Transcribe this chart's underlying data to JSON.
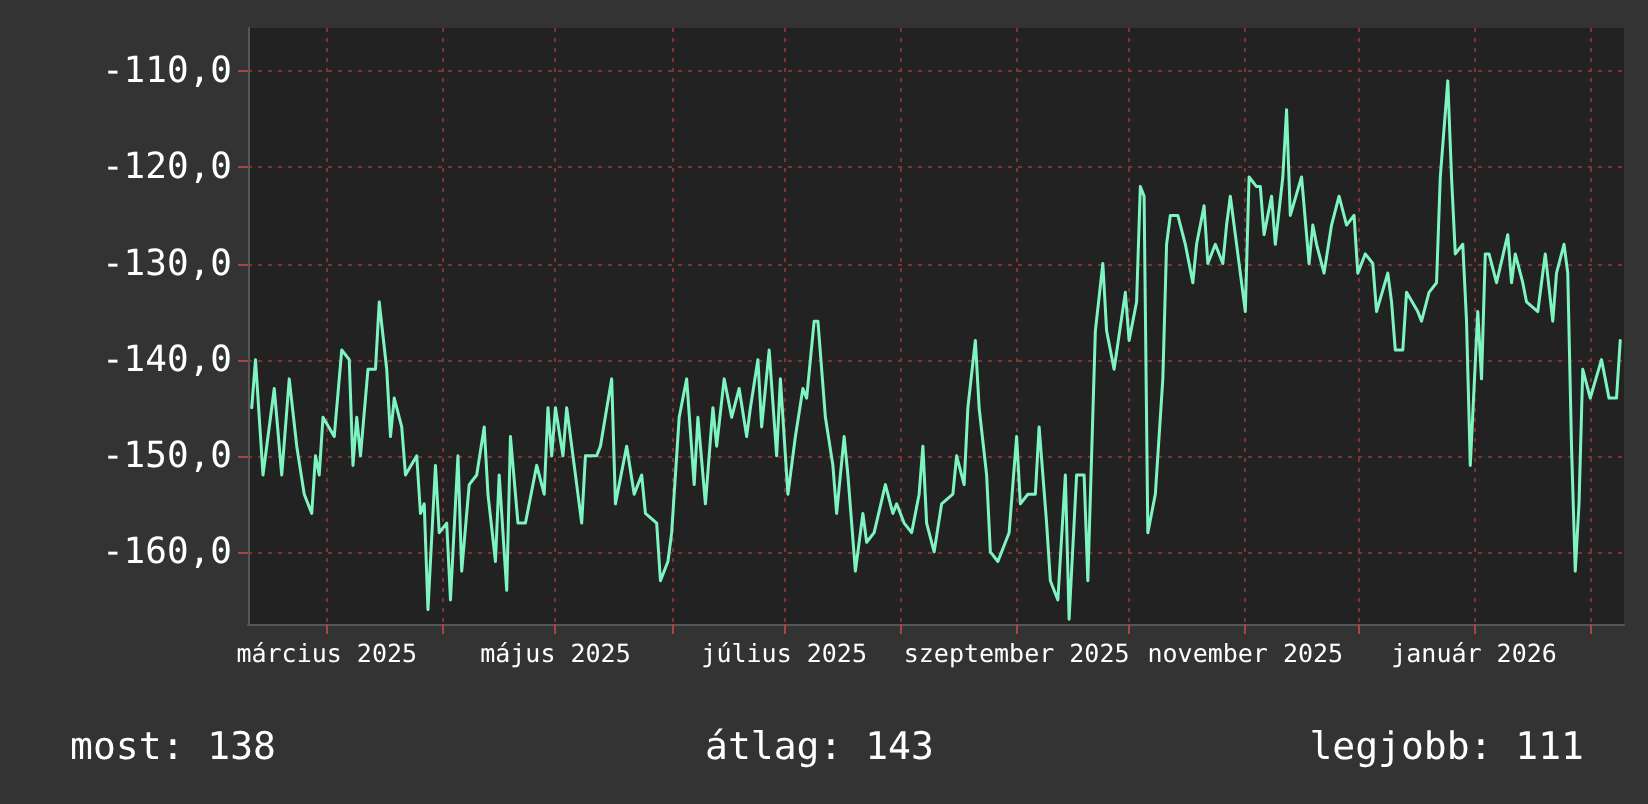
{
  "chart_data": {
    "type": "line",
    "marker": "none",
    "line_style": "solid",
    "grid": true,
    "xlim": [
      "2025-02-08",
      "2026-02-10"
    ],
    "xticks": [
      {
        "value": "2025-03-01",
        "label": "március 2025"
      },
      {
        "value": "2025-04-01",
        "label": null
      },
      {
        "value": "2025-05-01",
        "label": "május 2025"
      },
      {
        "value": "2025-06-01",
        "label": null
      },
      {
        "value": "2025-07-01",
        "label": "július 2025"
      },
      {
        "value": "2025-08-01",
        "label": null
      },
      {
        "value": "2025-09-01",
        "label": "szeptember 2025"
      },
      {
        "value": "2025-10-01",
        "label": null
      },
      {
        "value": "2025-11-01",
        "label": "november 2025"
      },
      {
        "value": "2025-12-01",
        "label": null
      },
      {
        "value": "2026-01-01",
        "label": "január 2026"
      },
      {
        "value": "2026-02-01",
        "label": null
      }
    ],
    "ylim": [
      -167.5,
      -105.5
    ],
    "yticks": [
      {
        "value": -160,
        "label": "-160,0"
      },
      {
        "value": -150,
        "label": "-150,0"
      },
      {
        "value": -140,
        "label": "-140,0"
      },
      {
        "value": -130,
        "label": "-130,0"
      },
      {
        "value": -120,
        "label": "-120,0"
      },
      {
        "value": -110,
        "label": "-110,0"
      }
    ],
    "annotations": [
      "most: 138",
      "átlag: 143",
      "legjobb: 111"
    ],
    "series": [
      {
        "color": "#7ef5c0",
        "x": [
          "2025-02-09",
          "2025-02-10",
          "2025-02-12",
          "2025-02-15",
          "2025-02-17",
          "2025-02-19",
          "2025-02-21",
          "2025-02-23",
          "2025-02-25",
          "2025-02-26",
          "2025-02-27",
          "2025-02-28",
          "2025-03-03",
          "2025-03-05",
          "2025-03-07",
          "2025-03-08",
          "2025-03-09",
          "2025-03-10",
          "2025-03-12",
          "2025-03-14",
          "2025-03-15",
          "2025-03-17",
          "2025-03-18",
          "2025-03-19",
          "2025-03-21",
          "2025-03-22",
          "2025-03-25",
          "2025-03-26",
          "2025-03-27",
          "2025-03-28",
          "2025-03-30",
          "2025-03-31",
          "2025-04-02",
          "2025-04-03",
          "2025-04-05",
          "2025-04-06",
          "2025-04-08",
          "2025-04-10",
          "2025-04-12",
          "2025-04-13",
          "2025-04-15",
          "2025-04-16",
          "2025-04-18",
          "2025-04-19",
          "2025-04-21",
          "2025-04-23",
          "2025-04-26",
          "2025-04-28",
          "2025-04-29",
          "2025-04-30",
          "2025-05-01",
          "2025-05-03",
          "2025-05-04",
          "2025-05-06",
          "2025-05-08",
          "2025-05-09",
          "2025-05-12",
          "2025-05-13",
          "2025-05-16",
          "2025-05-17",
          "2025-05-20",
          "2025-05-22",
          "2025-05-24",
          "2025-05-25",
          "2025-05-28",
          "2025-05-29",
          "2025-05-31",
          "2025-06-01",
          "2025-06-03",
          "2025-06-05",
          "2025-06-07",
          "2025-06-08",
          "2025-06-10",
          "2025-06-12",
          "2025-06-13",
          "2025-06-15",
          "2025-06-17",
          "2025-06-19",
          "2025-06-21",
          "2025-06-22",
          "2025-06-24",
          "2025-06-25",
          "2025-06-27",
          "2025-06-29",
          "2025-06-30",
          "2025-07-02",
          "2025-07-04",
          "2025-07-06",
          "2025-07-07",
          "2025-07-09",
          "2025-07-10",
          "2025-07-12",
          "2025-07-14",
          "2025-07-15",
          "2025-07-17",
          "2025-07-18",
          "2025-07-20",
          "2025-07-22",
          "2025-07-23",
          "2025-07-25",
          "2025-07-28",
          "2025-07-30",
          "2025-07-31",
          "2025-08-02",
          "2025-08-04",
          "2025-08-06",
          "2025-08-07",
          "2025-08-08",
          "2025-08-10",
          "2025-08-12",
          "2025-08-15",
          "2025-08-16",
          "2025-08-18",
          "2025-08-19",
          "2025-08-21",
          "2025-08-22",
          "2025-08-24",
          "2025-08-25",
          "2025-08-27",
          "2025-08-30",
          "2025-09-01",
          "2025-09-02",
          "2025-09-04",
          "2025-09-06",
          "2025-09-07",
          "2025-09-09",
          "2025-09-10",
          "2025-09-12",
          "2025-09-14",
          "2025-09-15",
          "2025-09-17",
          "2025-09-19",
          "2025-09-20",
          "2025-09-22",
          "2025-09-24",
          "2025-09-25",
          "2025-09-27",
          "2025-09-30",
          "2025-10-01",
          "2025-10-03",
          "2025-10-04",
          "2025-10-05",
          "2025-10-06",
          "2025-10-08",
          "2025-10-10",
          "2025-10-11",
          "2025-10-12",
          "2025-10-14",
          "2025-10-16",
          "2025-10-18",
          "2025-10-19",
          "2025-10-21",
          "2025-10-22",
          "2025-10-24",
          "2025-10-26",
          "2025-10-27",
          "2025-10-28",
          "2025-10-30",
          "2025-11-01",
          "2025-11-02",
          "2025-11-04",
          "2025-11-05",
          "2025-11-06",
          "2025-11-08",
          "2025-11-09",
          "2025-11-11",
          "2025-11-12",
          "2025-11-13",
          "2025-11-16",
          "2025-11-18",
          "2025-11-19",
          "2025-11-20",
          "2025-11-22",
          "2025-11-24",
          "2025-11-26",
          "2025-11-28",
          "2025-11-30",
          "2025-12-01",
          "2025-12-03",
          "2025-12-05",
          "2025-12-06",
          "2025-12-09",
          "2025-12-10",
          "2025-12-11",
          "2025-12-13",
          "2025-12-14",
          "2025-12-17",
          "2025-12-18",
          "2025-12-20",
          "2025-12-22",
          "2025-12-23",
          "2025-12-25",
          "2025-12-26",
          "2025-12-27",
          "2025-12-29",
          "2025-12-30",
          "2025-12-31",
          "2026-01-02",
          "2026-01-03",
          "2026-01-04",
          "2026-01-05",
          "2026-01-07",
          "2026-01-10",
          "2026-01-11",
          "2026-01-12",
          "2026-01-14",
          "2026-01-15",
          "2026-01-18",
          "2026-01-19",
          "2026-01-20",
          "2026-01-22",
          "2026-01-23",
          "2026-01-25",
          "2026-01-26",
          "2026-01-27",
          "2026-01-28",
          "2026-01-29",
          "2026-01-30",
          "2026-02-01",
          "2026-02-04",
          "2026-02-06",
          "2026-02-08",
          "2026-02-09"
        ],
        "values": [
          -145,
          -140,
          -152,
          -143,
          -152,
          -142,
          -149,
          -154,
          -156,
          -150,
          -152,
          -146,
          -148,
          -139,
          -140,
          -151,
          -146,
          -150,
          -141,
          -141,
          -134,
          -141,
          -148,
          -144,
          -147,
          -152,
          -150,
          -156,
          -155,
          -166,
          -151,
          -158,
          -157,
          -165,
          -150,
          -162,
          -153,
          -152,
          -147,
          -154,
          -161,
          -152,
          -164,
          -148,
          -157,
          -157,
          -151,
          -154,
          -145,
          -150,
          -145,
          -150,
          -145,
          -151,
          -157,
          -150,
          -150,
          -149,
          -142,
          -155,
          -149,
          -154,
          -152,
          -156,
          -157,
          -163,
          -161,
          -158,
          -146,
          -142,
          -153,
          -146,
          -155,
          -145,
          -149,
          -142,
          -146,
          -143,
          -148,
          -145,
          -140,
          -147,
          -139,
          -150,
          -142,
          -154,
          -148,
          -143,
          -144,
          -136,
          -136,
          -146,
          -151,
          -156,
          -148,
          -152,
          -162,
          -156,
          -159,
          -158,
          -153,
          -156,
          -155,
          -157,
          -158,
          -154,
          -149,
          -157,
          -160,
          -155,
          -154,
          -150,
          -153,
          -145,
          -138,
          -145,
          -152,
          -160,
          -161,
          -158,
          -148,
          -155,
          -154,
          -154,
          -147,
          -157,
          -163,
          -165,
          -152,
          -167,
          -152,
          -152,
          -163,
          -137,
          -130,
          -137,
          -141,
          -133,
          -138,
          -134,
          -122,
          -123,
          -158,
          -154,
          -142,
          -128,
          -125,
          -125,
          -128,
          -132,
          -128,
          -124,
          -130,
          -128,
          -130,
          -126,
          -123,
          -129,
          -135,
          -121,
          -122,
          -122,
          -127,
          -123,
          -128,
          -121,
          -114,
          -125,
          -121,
          -130,
          -126,
          -128,
          -131,
          -126,
          -123,
          -126,
          -125,
          -131,
          -129,
          -130,
          -135,
          -131,
          -134,
          -139,
          -139,
          -133,
          -135,
          -136,
          -133,
          -132,
          -121,
          -111,
          -121,
          -129,
          -128,
          -136,
          -151,
          -135,
          -142,
          -129,
          -129,
          -132,
          -127,
          -132,
          -129,
          -132,
          -134,
          -135,
          -132,
          -129,
          -136,
          -131,
          -128,
          -131,
          -149,
          -162,
          -155,
          -141,
          -144,
          -140,
          -144,
          -144,
          -138
        ]
      }
    ]
  }
}
